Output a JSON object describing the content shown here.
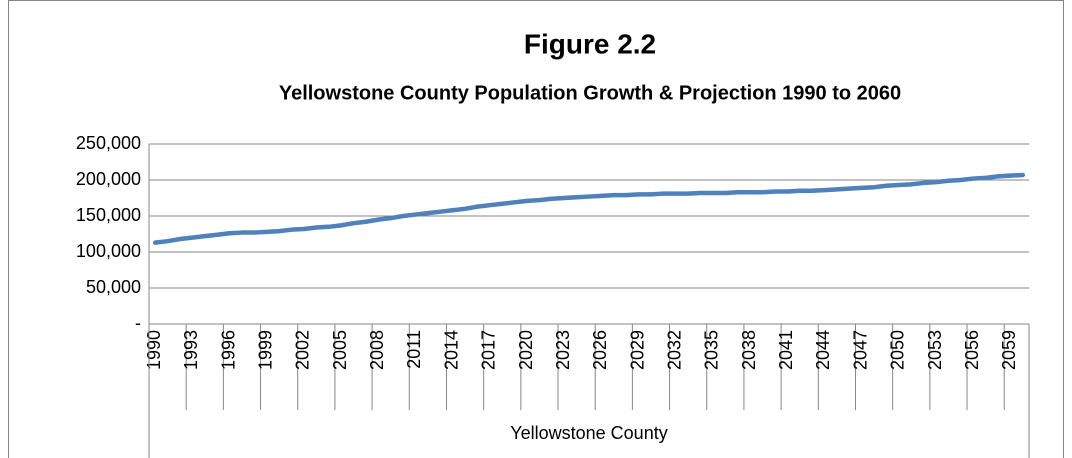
{
  "chart_data": {
    "type": "line",
    "title": "Figure 2.2",
    "subtitle": "Yellowstone County Population Growth & Projection 1990 to 2060",
    "categories": [
      "1990",
      null,
      null,
      "1993",
      null,
      null,
      "1996",
      null,
      null,
      "1999",
      null,
      null,
      "2002",
      null,
      null,
      "2005",
      null,
      null,
      "2008",
      null,
      null,
      "2011",
      null,
      null,
      "2014",
      null,
      null,
      "2017",
      null,
      null,
      "2020",
      null,
      null,
      "2023",
      null,
      null,
      "2026",
      null,
      null,
      "2029",
      null,
      null,
      "2032",
      null,
      null,
      "2035",
      null,
      null,
      "2038",
      null,
      null,
      "2041",
      null,
      null,
      "2044",
      null,
      null,
      "2047",
      null,
      null,
      "2050",
      null,
      null,
      "2053",
      null,
      null,
      "2056",
      null,
      null,
      "2059",
      null
    ],
    "values": [
      113000,
      115000,
      118000,
      120000,
      122000,
      124000,
      126000,
      127000,
      127000,
      128000,
      129000,
      131000,
      132000,
      134000,
      135000,
      137000,
      140000,
      142000,
      145000,
      147000,
      150000,
      152000,
      154000,
      156000,
      158000,
      160000,
      163000,
      165000,
      167000,
      169000,
      171000,
      172000,
      174000,
      175000,
      176000,
      177000,
      178000,
      179000,
      179000,
      180000,
      180000,
      181000,
      181000,
      181000,
      182000,
      182000,
      182000,
      183000,
      183000,
      183000,
      184000,
      184000,
      185000,
      185000,
      186000,
      187000,
      188000,
      189000,
      190000,
      192000,
      193000,
      194000,
      196000,
      197000,
      199000,
      200000,
      202000,
      203000,
      205000,
      206000,
      207000
    ],
    "color": "#4f81bd",
    "category_group": "Yellowstone County",
    "ylim": [
      0,
      250000
    ],
    "yticks": [
      {
        "value": 0,
        "label": "-"
      },
      {
        "value": 50000,
        "label": "50,000"
      },
      {
        "value": 100000,
        "label": "100,000"
      },
      {
        "value": 150000,
        "label": "150,000"
      },
      {
        "value": 200000,
        "label": "200,000"
      },
      {
        "value": 250000,
        "label": "250,000"
      }
    ],
    "grid": true
  }
}
